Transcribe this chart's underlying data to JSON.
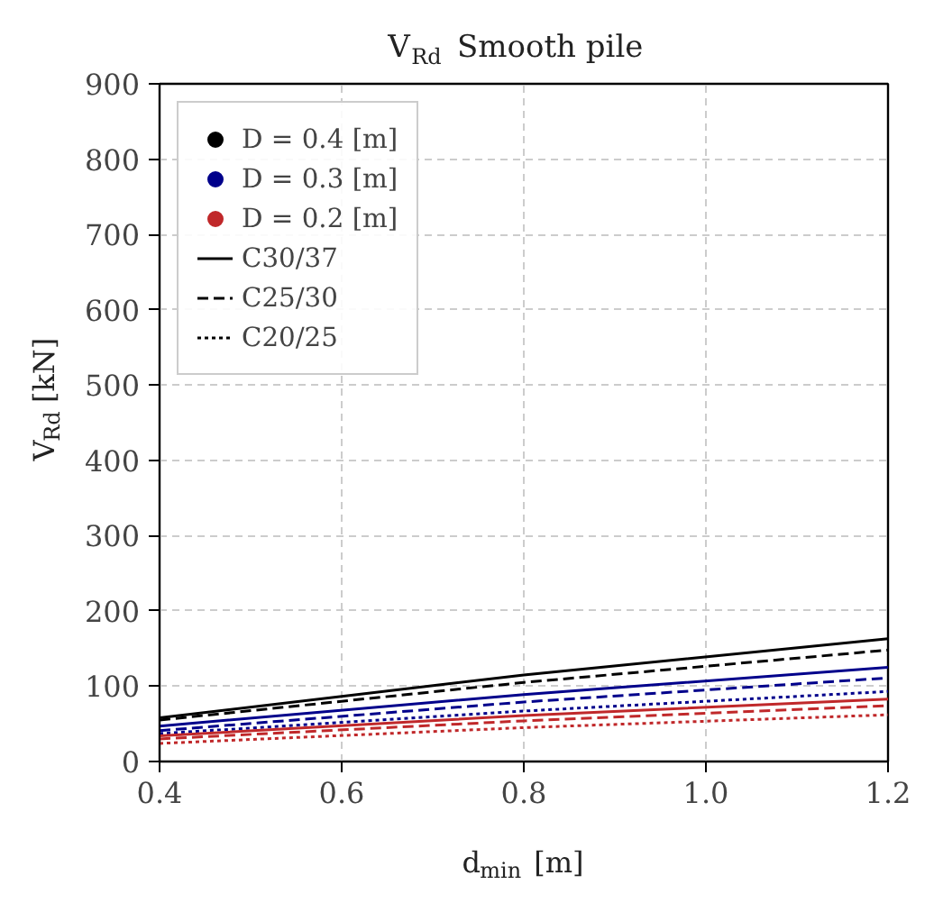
{
  "chart_data": {
    "type": "line",
    "title": "V$_{Rd}$ Smooth pile",
    "xlabel": "d$_{min}$ [m]",
    "ylabel": "V$_{Rd}$ [kN]",
    "x": [
      0.4,
      0.8,
      1.2
    ],
    "xlim": [
      0.4,
      1.2
    ],
    "xticks": [
      {
        "value": 0.4,
        "label": "0.4"
      },
      {
        "value": 0.6,
        "label": "0.6"
      },
      {
        "value": 0.8,
        "label": "0.8"
      },
      {
        "value": 1.0,
        "label": "1.0"
      },
      {
        "value": 1.2,
        "label": "1.2"
      }
    ],
    "ylim": [
      0,
      900
    ],
    "yticks": [
      0,
      100,
      200,
      300,
      400,
      500,
      600,
      700,
      800,
      900
    ],
    "grid": true,
    "legend": "top left",
    "series": [
      {
        "color": "#000000",
        "line_style": "solid",
        "values": [
          58,
          115,
          163
        ]
      },
      {
        "color": "#000000",
        "line_style": "dashed",
        "values": [
          55,
          105,
          148
        ]
      },
      {
        "color": "#00008b",
        "line_style": "solid",
        "values": [
          47,
          89,
          125
        ]
      },
      {
        "color": "#00008b",
        "line_style": "dashed",
        "values": [
          41,
          79,
          111
        ]
      },
      {
        "color": "#00008b",
        "line_style": "dotted",
        "values": [
          37,
          67,
          93
        ]
      },
      {
        "color": "#c0282a",
        "line_style": "solid",
        "values": [
          34,
          61,
          83
        ]
      },
      {
        "color": "#c0282a",
        "line_style": "dashed",
        "values": [
          30,
          54,
          74
        ]
      },
      {
        "color": "#c0282a",
        "line_style": "dotted",
        "values": [
          24,
          45,
          62
        ]
      },
      {
        "name": "D = 0.4 [m]",
        "type": "scatter",
        "marker": "circle",
        "color": "#000000",
        "values": [
          null,
          null,
          null
        ]
      },
      {
        "name": "D = 0.3 [m]",
        "type": "scatter",
        "marker": "circle",
        "color": "#00008b",
        "values": [
          null,
          null,
          null
        ]
      },
      {
        "name": "D = 0.2 [m]",
        "type": "scatter",
        "marker": "circle",
        "color": "#c0282a",
        "values": [
          null,
          null,
          null
        ]
      },
      {
        "name": "C30/37",
        "color": "#000000",
        "line_style": "solid",
        "values": [
          null,
          null,
          null
        ]
      },
      {
        "name": "C25/30",
        "color": "#000000",
        "line_style": "dashed",
        "values": [
          null,
          null,
          null
        ]
      },
      {
        "name": "C20/25",
        "color": "#000000",
        "line_style": "dotted",
        "values": [
          null,
          null,
          null
        ]
      }
    ]
  }
}
